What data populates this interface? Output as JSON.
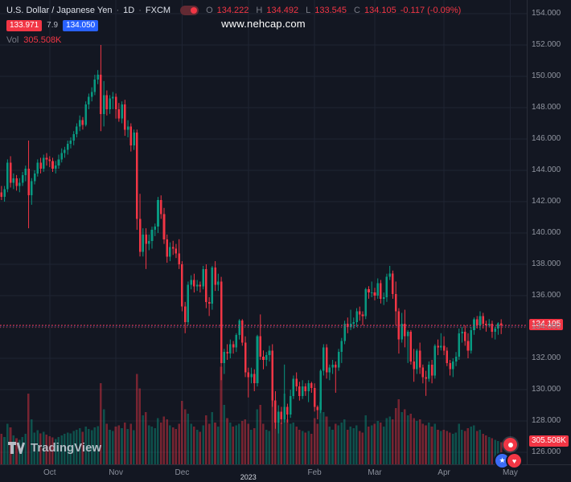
{
  "header": {
    "symbol_title": "U.S. Dollar / Japanese Yen",
    "dot": "·",
    "interval": "1D",
    "exchange": "FXCM",
    "ohlc": {
      "o_label": "O",
      "o": "134.222",
      "h_label": "H",
      "h": "134.492",
      "l_label": "L",
      "l": "133.545",
      "c_label": "C",
      "c": "134.105",
      "change": "-0.117 (-0.09%)"
    },
    "bid": "133.971",
    "spread": "7.9",
    "ask": "134.050",
    "vol_label": "Vol",
    "vol_value": "305.508K"
  },
  "watermark": {
    "text": "www.nehcap.com"
  },
  "footer": {
    "logo_text": "TradingView"
  },
  "icons": {
    "star": "★",
    "heart": "♥"
  },
  "colors": {
    "background": "#131722",
    "grid": "#1f2433",
    "up": "#089981",
    "down": "#F23645",
    "accent_blue": "#2962FF",
    "axis_text": "#9196A1",
    "text_muted": "#787B86",
    "text_primary": "#DDE1EA"
  },
  "chart_data": {
    "type": "candlestick",
    "title": "U.S. Dollar / Japanese Yen",
    "interval": "1D",
    "exchange": "FXCM",
    "last_price": 134.105,
    "last_price_label": "134.105",
    "bid_line": 133.971,
    "ask_line": 134.05,
    "last_volume_label": "305.508K",
    "price_axis": {
      "min": 126,
      "max": 154,
      "step": 2,
      "labels": [
        "154.000",
        "152.000",
        "150.000",
        "148.000",
        "146.000",
        "144.000",
        "142.000",
        "140.000",
        "138.000",
        "136.000",
        "134.000",
        "132.000",
        "130.000",
        "128.000",
        "126.000"
      ]
    },
    "months": [
      {
        "label": "Oct",
        "index": 16
      },
      {
        "label": "Nov",
        "index": 38
      },
      {
        "label": "Dec",
        "index": 60
      },
      {
        "label": "2023",
        "index": 82,
        "emphasis": true
      },
      {
        "label": "Feb",
        "index": 104
      },
      {
        "label": "Mar",
        "index": 124
      },
      {
        "label": "Apr",
        "index": 147
      },
      {
        "label": "May",
        "index": 169
      }
    ],
    "candles": [
      [
        142.6,
        143.0,
        142.1,
        142.3
      ],
      [
        142.3,
        143.0,
        142.0,
        142.8
      ],
      [
        142.8,
        144.7,
        142.6,
        144.5
      ],
      [
        144.5,
        144.9,
        142.9,
        143.2
      ],
      [
        143.2,
        143.8,
        142.8,
        143.5
      ],
      [
        143.5,
        143.7,
        142.7,
        143.0
      ],
      [
        143.0,
        143.5,
        142.6,
        143.2
      ],
      [
        143.2,
        143.9,
        143.0,
        143.7
      ],
      [
        143.7,
        144.3,
        143.3,
        144.1
      ],
      [
        144.1,
        145.9,
        140.3,
        142.4
      ],
      [
        142.4,
        143.5,
        141.8,
        143.3
      ],
      [
        143.3,
        144.0,
        143.1,
        143.8
      ],
      [
        143.8,
        144.7,
        143.6,
        144.5
      ],
      [
        144.5,
        144.8,
        143.8,
        144.1
      ],
      [
        144.1,
        145.0,
        143.9,
        144.8
      ],
      [
        144.8,
        145.1,
        144.3,
        144.7
      ],
      [
        144.7,
        144.9,
        144.2,
        144.6
      ],
      [
        144.6,
        144.8,
        143.9,
        144.1
      ],
      [
        144.1,
        144.6,
        143.8,
        144.3
      ],
      [
        144.3,
        145.0,
        144.1,
        144.7
      ],
      [
        144.7,
        145.4,
        144.5,
        145.1
      ],
      [
        145.1,
        145.5,
        144.8,
        145.3
      ],
      [
        145.3,
        145.9,
        145.0,
        145.7
      ],
      [
        145.7,
        146.1,
        145.4,
        145.9
      ],
      [
        145.9,
        146.5,
        145.6,
        146.3
      ],
      [
        146.3,
        147.0,
        146.1,
        146.8
      ],
      [
        146.8,
        147.5,
        146.5,
        147.2
      ],
      [
        147.2,
        147.4,
        146.6,
        146.9
      ],
      [
        146.9,
        148.4,
        146.8,
        148.2
      ],
      [
        148.2,
        148.9,
        147.9,
        148.7
      ],
      [
        148.7,
        149.3,
        148.4,
        149.0
      ],
      [
        149.0,
        150.1,
        148.8,
        149.8
      ],
      [
        149.8,
        150.4,
        149.5,
        150.1
      ],
      [
        150.1,
        152.0,
        146.5,
        147.6
      ],
      [
        147.6,
        149.7,
        146.8,
        148.8
      ],
      [
        148.8,
        149.1,
        147.5,
        147.9
      ],
      [
        147.9,
        148.8,
        147.6,
        148.6
      ],
      [
        148.6,
        149.0,
        147.9,
        148.7
      ],
      [
        148.7,
        148.9,
        147.3,
        147.9
      ],
      [
        147.9,
        148.3,
        147.1,
        147.3
      ],
      [
        147.3,
        148.4,
        147.0,
        148.2
      ],
      [
        148.2,
        148.5,
        146.2,
        146.6
      ],
      [
        146.6,
        147.2,
        146.1,
        146.8
      ],
      [
        146.8,
        147.0,
        145.2,
        145.6
      ],
      [
        145.6,
        146.6,
        145.3,
        146.4
      ],
      [
        146.4,
        146.6,
        140.2,
        140.9
      ],
      [
        140.9,
        142.5,
        138.5,
        138.8
      ],
      [
        138.8,
        140.3,
        138.5,
        139.9
      ],
      [
        139.9,
        140.3,
        137.7,
        139.3
      ],
      [
        139.3,
        139.9,
        138.9,
        139.5
      ],
      [
        139.5,
        140.4,
        139.0,
        140.2
      ],
      [
        140.2,
        140.6,
        139.8,
        140.4
      ],
      [
        140.4,
        142.3,
        140.0,
        142.1
      ],
      [
        142.1,
        142.4,
        140.9,
        141.2
      ],
      [
        141.2,
        141.6,
        139.3,
        139.6
      ],
      [
        139.6,
        139.9,
        138.1,
        138.5
      ],
      [
        138.5,
        139.4,
        138.2,
        139.1
      ],
      [
        139.1,
        139.5,
        138.6,
        139.0
      ],
      [
        139.0,
        139.3,
        138.4,
        138.7
      ],
      [
        138.7,
        139.6,
        137.7,
        138.0
      ],
      [
        138.0,
        138.2,
        135.0,
        135.3
      ],
      [
        135.3,
        135.6,
        133.6,
        134.3
      ],
      [
        134.3,
        136.9,
        134.1,
        136.7
      ],
      [
        136.7,
        137.3,
        136.4,
        137.0
      ],
      [
        137.0,
        137.4,
        136.2,
        136.6
      ],
      [
        136.6,
        137.0,
        136.3,
        136.7
      ],
      [
        136.7,
        136.9,
        136.2,
        136.6
      ],
      [
        136.6,
        137.9,
        136.4,
        137.7
      ],
      [
        137.7,
        138.0,
        135.2,
        135.6
      ],
      [
        135.6,
        135.9,
        134.7,
        135.5
      ],
      [
        135.5,
        137.9,
        135.1,
        137.8
      ],
      [
        137.8,
        138.2,
        136.3,
        136.7
      ],
      [
        136.7,
        137.4,
        136.3,
        136.9
      ],
      [
        136.9,
        137.2,
        130.6,
        131.7
      ],
      [
        131.7,
        132.6,
        131.0,
        132.4
      ],
      [
        132.4,
        132.9,
        131.9,
        132.3
      ],
      [
        132.3,
        133.2,
        132.0,
        132.9
      ],
      [
        132.9,
        133.1,
        132.3,
        132.7
      ],
      [
        132.7,
        133.6,
        132.4,
        133.5
      ],
      [
        133.5,
        134.5,
        133.2,
        134.4
      ],
      [
        134.4,
        134.5,
        132.8,
        133.0
      ],
      [
        133.0,
        133.4,
        130.8,
        131.1
      ],
      [
        131.1,
        131.4,
        129.5,
        130.8
      ],
      [
        130.8,
        131.4,
        130.4,
        131.0
      ],
      [
        131.0,
        131.3,
        129.9,
        130.4
      ],
      [
        130.4,
        133.5,
        130.2,
        133.4
      ],
      [
        133.4,
        134.8,
        131.9,
        132.1
      ],
      [
        132.1,
        132.5,
        131.3,
        131.9
      ],
      [
        131.9,
        132.4,
        131.5,
        132.2
      ],
      [
        132.2,
        132.8,
        131.8,
        132.5
      ],
      [
        132.5,
        132.9,
        128.9,
        129.3
      ],
      [
        129.3,
        129.9,
        127.5,
        127.9
      ],
      [
        127.9,
        129.0,
        127.2,
        128.6
      ],
      [
        128.6,
        128.9,
        127.8,
        128.1
      ],
      [
        128.1,
        131.6,
        127.9,
        128.9
      ],
      [
        128.9,
        129.1,
        127.9,
        128.4
      ],
      [
        128.4,
        130.0,
        128.2,
        129.6
      ],
      [
        129.6,
        130.9,
        129.4,
        130.7
      ],
      [
        130.7,
        131.1,
        129.9,
        130.2
      ],
      [
        130.2,
        130.5,
        129.3,
        129.6
      ],
      [
        129.6,
        130.6,
        129.4,
        130.2
      ],
      [
        130.2,
        130.4,
        129.6,
        129.9
      ],
      [
        129.9,
        130.6,
        129.2,
        130.4
      ],
      [
        130.4,
        130.5,
        129.8,
        130.1
      ],
      [
        130.1,
        130.4,
        128.6,
        128.9
      ],
      [
        128.9,
        129.0,
        128.1,
        128.7
      ],
      [
        128.7,
        131.3,
        128.5,
        131.2
      ],
      [
        131.2,
        132.9,
        130.9,
        132.7
      ],
      [
        132.7,
        132.9,
        130.7,
        131.1
      ],
      [
        131.1,
        131.6,
        130.6,
        131.4
      ],
      [
        131.4,
        131.9,
        131.0,
        131.6
      ],
      [
        131.6,
        131.8,
        129.8,
        131.4
      ],
      [
        131.4,
        132.6,
        131.2,
        132.4
      ],
      [
        132.4,
        133.3,
        131.7,
        133.1
      ],
      [
        133.1,
        134.4,
        132.9,
        134.2
      ],
      [
        134.2,
        134.6,
        133.6,
        134.0
      ],
      [
        134.0,
        135.1,
        133.8,
        134.2
      ],
      [
        134.2,
        134.6,
        133.9,
        134.3
      ],
      [
        134.3,
        135.2,
        134.0,
        135.0
      ],
      [
        135.0,
        135.3,
        134.4,
        134.8
      ],
      [
        134.8,
        135.0,
        134.1,
        134.7
      ],
      [
        134.7,
        136.5,
        134.5,
        136.4
      ],
      [
        136.4,
        136.6,
        135.8,
        136.2
      ],
      [
        136.2,
        136.9,
        135.9,
        136.2
      ],
      [
        136.2,
        136.5,
        135.7,
        136.0
      ],
      [
        136.0,
        137.1,
        135.8,
        136.8
      ],
      [
        136.8,
        137.0,
        135.5,
        135.8
      ],
      [
        135.8,
        136.2,
        135.4,
        135.9
      ],
      [
        135.9,
        137.4,
        135.6,
        137.2
      ],
      [
        137.2,
        137.9,
        137.0,
        137.4
      ],
      [
        137.4,
        137.6,
        135.8,
        136.1
      ],
      [
        136.1,
        136.9,
        134.1,
        135.0
      ],
      [
        135.0,
        135.2,
        132.3,
        133.2
      ],
      [
        133.2,
        134.9,
        133.0,
        134.2
      ],
      [
        134.2,
        135.1,
        132.7,
        133.4
      ],
      [
        133.4,
        133.8,
        131.7,
        133.7
      ],
      [
        133.7,
        133.8,
        131.6,
        131.8
      ],
      [
        131.8,
        132.6,
        130.5,
        131.3
      ],
      [
        131.3,
        132.6,
        131.0,
        132.5
      ],
      [
        132.5,
        133.0,
        131.0,
        131.4
      ],
      [
        131.4,
        131.6,
        130.4,
        130.8
      ],
      [
        130.8,
        131.2,
        129.6,
        130.7
      ],
      [
        130.7,
        131.8,
        130.5,
        131.6
      ],
      [
        131.6,
        131.9,
        130.4,
        130.9
      ],
      [
        130.9,
        132.9,
        130.7,
        132.8
      ],
      [
        132.8,
        133.2,
        132.2,
        132.7
      ],
      [
        132.7,
        133.6,
        132.5,
        132.8
      ],
      [
        132.8,
        133.4,
        132.2,
        132.5
      ],
      [
        132.5,
        132.7,
        131.5,
        131.7
      ],
      [
        131.7,
        131.9,
        130.9,
        131.3
      ],
      [
        131.3,
        132.0,
        130.8,
        131.8
      ],
      [
        131.8,
        132.4,
        131.5,
        132.1
      ],
      [
        132.1,
        133.9,
        131.9,
        133.6
      ],
      [
        133.6,
        134.0,
        133.0,
        133.7
      ],
      [
        133.7,
        134.1,
        132.8,
        133.1
      ],
      [
        133.1,
        133.6,
        132.0,
        132.5
      ],
      [
        132.5,
        134.0,
        132.3,
        133.8
      ],
      [
        133.8,
        134.6,
        133.5,
        134.5
      ],
      [
        134.5,
        134.7,
        133.9,
        134.1
      ],
      [
        134.1,
        135.0,
        133.8,
        134.7
      ],
      [
        134.7,
        134.9,
        133.9,
        134.2
      ],
      [
        134.2,
        134.4,
        133.7,
        134.1
      ],
      [
        134.1,
        134.5,
        134.0,
        134.2
      ],
      [
        134.2,
        134.4,
        133.3,
        133.7
      ],
      [
        133.7,
        134.0,
        133.2,
        133.9
      ],
      [
        133.9,
        134.3,
        133.5,
        134.22
      ],
      [
        134.222,
        134.492,
        133.545,
        134.105
      ]
    ],
    "volumes": [
      420,
      380,
      560,
      510,
      400,
      360,
      340,
      380,
      420,
      980,
      620,
      440,
      470,
      430,
      450,
      410,
      390,
      370,
      350,
      380,
      400,
      420,
      440,
      430,
      460,
      480,
      500,
      450,
      520,
      490,
      470,
      510,
      530,
      1120,
      760,
      560,
      480,
      460,
      520,
      540,
      500,
      580,
      490,
      560,
      470,
      1250,
      1050,
      680,
      720,
      540,
      520,
      500,
      640,
      580,
      660,
      620,
      540,
      510,
      490,
      560,
      880,
      760,
      700,
      560,
      520,
      480,
      450,
      540,
      680,
      560,
      720,
      580,
      520,
      1350,
      820,
      640,
      580,
      520,
      540,
      560,
      600,
      620,
      560,
      480,
      500,
      760,
      820,
      560,
      480,
      460,
      900,
      840,
      720,
      580,
      980,
      620,
      560,
      580,
      520,
      480,
      460,
      440,
      460,
      420,
      640,
      560,
      860,
      720,
      660,
      520,
      480,
      560,
      540,
      580,
      620,
      480,
      520,
      500,
      540,
      460,
      440,
      680,
      520,
      540,
      560,
      600,
      580,
      520,
      640,
      660,
      620,
      780,
      900,
      720,
      760,
      680,
      700,
      640,
      600,
      620,
      560,
      540,
      580,
      520,
      560,
      480,
      460,
      480,
      460,
      440,
      420,
      440,
      560,
      480,
      460,
      500,
      520,
      540,
      460,
      480,
      420,
      400,
      380,
      360,
      340,
      320,
      305.5
    ]
  }
}
